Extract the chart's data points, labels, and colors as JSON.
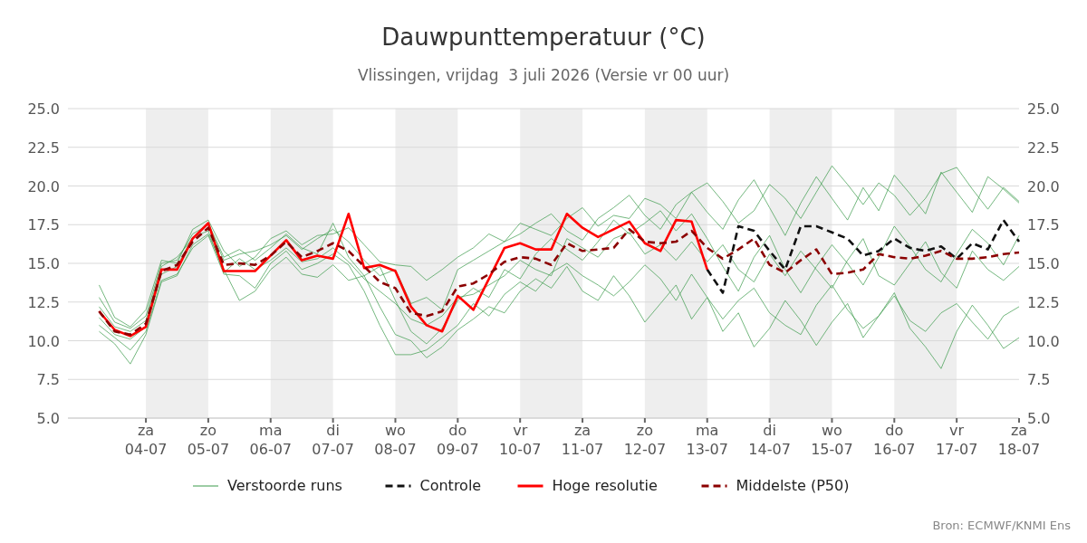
{
  "chart_data": {
    "type": "line",
    "title": "Dauwpunttemperatuur (°C)",
    "subtitle": "Vlissingen, vrijdag  3 juli 2026 (Versie vr 00 uur)",
    "annotations": [
      "Bron: ECMWF/KNMI Ens"
    ],
    "x": [
      "2026-07-03T06:00",
      "2026-07-03T12:00",
      "2026-07-03T18:00",
      "2026-07-04T00:00",
      "2026-07-04T06:00",
      "2026-07-04T12:00",
      "2026-07-04T18:00",
      "2026-07-05T00:00",
      "2026-07-05T06:00",
      "2026-07-05T12:00",
      "2026-07-05T18:00",
      "2026-07-06T00:00",
      "2026-07-06T06:00",
      "2026-07-06T12:00",
      "2026-07-06T18:00",
      "2026-07-07T00:00",
      "2026-07-07T06:00",
      "2026-07-07T12:00",
      "2026-07-07T18:00",
      "2026-07-08T00:00",
      "2026-07-08T06:00",
      "2026-07-08T12:00",
      "2026-07-08T18:00",
      "2026-07-09T00:00",
      "2026-07-09T06:00",
      "2026-07-09T12:00",
      "2026-07-09T18:00",
      "2026-07-10T00:00",
      "2026-07-10T06:00",
      "2026-07-10T12:00",
      "2026-07-10T18:00",
      "2026-07-11T00:00",
      "2026-07-11T06:00",
      "2026-07-11T12:00",
      "2026-07-11T18:00",
      "2026-07-12T00:00",
      "2026-07-12T06:00",
      "2026-07-12T12:00",
      "2026-07-12T18:00",
      "2026-07-13T00:00",
      "2026-07-13T06:00",
      "2026-07-13T12:00",
      "2026-07-13T18:00",
      "2026-07-14T00:00",
      "2026-07-14T06:00",
      "2026-07-14T12:00",
      "2026-07-14T18:00",
      "2026-07-15T00:00",
      "2026-07-15T06:00",
      "2026-07-15T12:00",
      "2026-07-15T18:00",
      "2026-07-16T00:00",
      "2026-07-16T06:00",
      "2026-07-16T12:00",
      "2026-07-16T18:00",
      "2026-07-17T00:00",
      "2026-07-17T06:00",
      "2026-07-17T12:00",
      "2026-07-17T18:00",
      "2026-07-18T00:00"
    ],
    "series": [
      {
        "name": "Verstoorde runs",
        "color": "#3a9a4a",
        "line_style": "solid",
        "values": [
          12.8,
          11.2,
          10.8,
          11.6,
          15.0,
          15.2,
          16.9,
          17.5,
          15.2,
          15.6,
          15.8,
          16.2,
          16.8,
          15.9,
          16.6,
          17.2,
          16.4,
          15.2,
          14.2,
          14.6,
          12.4,
          12.8,
          12.0,
          14.6,
          15.2,
          15.8,
          16.4,
          16.9,
          17.6,
          18.2,
          17.1,
          16.5,
          17.9,
          18.6,
          19.4,
          18.1,
          17.2,
          18.8,
          19.6,
          18.3,
          17.2,
          19.1,
          20.4,
          18.6,
          16.8,
          18.9,
          20.6,
          19.2,
          17.8,
          19.9,
          18.4,
          20.7,
          19.5,
          18.2,
          20.9,
          19.6,
          18.3,
          20.6,
          19.8,
          18.9
        ]
      },
      {
        "color": "#3a9a4a",
        "line_style": "solid",
        "values": [
          11.0,
          10.2,
          9.4,
          10.6,
          13.9,
          14.3,
          16.0,
          16.8,
          14.3,
          14.2,
          13.4,
          15.0,
          15.8,
          14.6,
          15.0,
          15.6,
          14.9,
          13.2,
          11.0,
          9.1,
          9.1,
          9.4,
          10.2,
          11.0,
          12.4,
          11.6,
          13.0,
          13.8,
          13.2,
          14.4,
          15.0,
          14.2,
          13.6,
          12.9,
          13.8,
          14.9,
          14.0,
          12.6,
          14.3,
          12.8,
          11.4,
          12.6,
          13.4,
          11.8,
          11.0,
          10.4,
          12.3,
          13.6,
          12.0,
          10.8,
          11.6,
          12.9,
          11.3,
          10.6,
          11.8,
          12.4,
          11.2,
          10.1,
          11.6,
          12.2
        ]
      },
      {
        "color": "#3a9a4a",
        "line_style": "solid",
        "values": [
          12.2,
          10.9,
          10.6,
          11.3,
          14.8,
          15.4,
          16.6,
          17.6,
          15.4,
          15.9,
          15.2,
          16.0,
          16.9,
          16.0,
          15.6,
          17.6,
          15.4,
          14.2,
          14.8,
          12.6,
          10.6,
          9.8,
          10.8,
          12.6,
          13.4,
          12.8,
          14.6,
          14.0,
          15.6,
          16.6,
          15.9,
          15.2,
          16.4,
          17.8,
          16.9,
          17.6,
          18.4,
          17.1,
          18.2,
          16.6,
          14.8,
          13.2,
          15.4,
          16.8,
          14.6,
          13.1,
          14.8,
          16.2,
          15.0,
          13.6,
          15.4,
          17.4,
          16.1,
          14.6,
          13.8,
          15.6,
          17.2,
          16.3,
          14.9,
          16.8
        ]
      },
      {
        "color": "#3a9a4a",
        "line_style": "solid",
        "values": [
          13.6,
          11.5,
          10.9,
          12.0,
          15.2,
          15.0,
          17.2,
          17.8,
          15.8,
          14.8,
          15.4,
          16.6,
          17.1,
          16.2,
          16.8,
          16.9,
          17.3,
          16.2,
          15.1,
          14.9,
          14.8,
          13.9,
          14.6,
          15.4,
          16.0,
          16.9,
          16.4,
          17.6,
          17.2,
          16.8,
          17.9,
          18.6,
          17.4,
          18.1,
          17.9,
          19.2,
          18.8,
          17.9,
          19.6,
          20.2,
          19.0,
          17.6,
          18.4,
          20.1,
          19.2,
          17.9,
          19.6,
          21.3,
          20.1,
          18.8,
          20.2,
          19.4,
          18.1,
          19.2,
          20.8,
          21.2,
          19.8,
          18.5,
          19.9,
          19.0
        ]
      },
      {
        "color": "#3a9a4a",
        "line_style": "solid",
        "values": [
          10.6,
          9.8,
          8.5,
          10.4,
          13.8,
          14.2,
          16.2,
          16.9,
          14.6,
          12.6,
          13.2,
          14.6,
          15.4,
          14.3,
          14.1,
          14.9,
          13.9,
          14.2,
          12.2,
          10.4,
          10.0,
          8.9,
          9.6,
          10.7,
          11.4,
          12.2,
          11.8,
          13.2,
          14.0,
          13.4,
          14.8,
          13.2,
          12.6,
          14.2,
          12.9,
          11.2,
          12.4,
          13.6,
          11.4,
          12.8,
          10.6,
          11.8,
          9.6,
          10.8,
          12.6,
          11.3,
          9.7,
          11.2,
          12.4,
          10.2,
          11.6,
          13.1,
          10.8,
          9.6,
          8.2,
          10.6,
          12.3,
          11.0,
          9.5,
          10.2
        ]
      },
      {
        "color": "#3a9a4a",
        "line_style": "solid",
        "values": [
          11.5,
          10.4,
          10.1,
          10.9,
          14.3,
          14.8,
          16.7,
          17.1,
          14.4,
          15.3,
          14.6,
          15.2,
          16.0,
          15.1,
          15.3,
          16.0,
          15.1,
          14.0,
          13.2,
          12.4,
          11.4,
          11.0,
          11.6,
          12.8,
          13.0,
          13.6,
          14.2,
          15.2,
          14.6,
          14.2,
          16.6,
          16.0,
          15.4,
          16.6,
          17.0,
          15.6,
          16.2,
          15.2,
          16.4,
          15.1,
          16.2,
          14.6,
          13.8,
          15.6,
          14.2,
          15.8,
          14.6,
          13.4,
          15.2,
          16.6,
          14.2,
          13.6,
          15.0,
          16.4,
          14.4,
          13.4,
          15.8,
          14.6,
          13.9,
          14.8
        ]
      },
      {
        "name": "Controle",
        "color": "#111111",
        "line_style": "dashed",
        "values": [
          null,
          null,
          null,
          null,
          null,
          null,
          null,
          null,
          null,
          null,
          null,
          null,
          null,
          null,
          null,
          null,
          null,
          null,
          null,
          null,
          null,
          null,
          null,
          null,
          null,
          null,
          null,
          null,
          null,
          null,
          null,
          null,
          null,
          null,
          null,
          null,
          null,
          null,
          null,
          14.6,
          13.1,
          17.4,
          17.1,
          15.8,
          14.6,
          17.4,
          17.4,
          17.0,
          16.6,
          15.5,
          15.8,
          16.6,
          16.0,
          15.8,
          16.1,
          15.3,
          16.3,
          15.9,
          17.8,
          16.4
        ]
      },
      {
        "name": "Hoge resolutie",
        "color": "#ff0000",
        "line_style": "solid",
        "values": [
          11.9,
          10.7,
          10.3,
          10.9,
          14.6,
          14.6,
          16.6,
          17.6,
          14.5,
          14.5,
          14.5,
          15.5,
          16.5,
          15.2,
          15.5,
          15.3,
          18.2,
          14.7,
          14.9,
          14.5,
          12.2,
          11.0,
          10.6,
          12.9,
          12.0,
          14.0,
          16.0,
          16.3,
          15.9,
          15.9,
          18.2,
          17.3,
          16.7,
          17.2,
          17.7,
          16.3,
          15.8,
          17.8,
          17.7,
          14.6,
          null,
          null,
          null,
          null,
          null,
          null,
          null,
          null,
          null,
          null,
          null,
          null,
          null,
          null,
          null,
          null,
          null,
          null,
          null,
          null
        ]
      },
      {
        "name": "Middelste (P50)",
        "color": "#8b0000",
        "line_style": "dashed",
        "values": [
          11.9,
          10.6,
          10.4,
          11.1,
          14.5,
          14.9,
          16.4,
          17.3,
          14.9,
          15.0,
          14.9,
          15.5,
          16.4,
          15.4,
          15.8,
          16.3,
          15.8,
          14.8,
          13.8,
          13.4,
          11.8,
          11.6,
          11.9,
          13.5,
          13.7,
          14.3,
          15.1,
          15.4,
          15.3,
          14.9,
          16.3,
          15.8,
          15.9,
          16.0,
          17.2,
          16.4,
          16.3,
          16.4,
          17.1,
          16.0,
          15.3,
          15.9,
          16.6,
          14.9,
          14.4,
          15.2,
          15.9,
          14.3,
          14.4,
          14.6,
          15.6,
          15.4,
          15.3,
          15.5,
          15.8,
          15.3,
          15.3,
          15.4,
          15.6,
          15.7
        ]
      }
    ],
    "xlim": [
      "2026-07-02T18:00",
      "2026-07-18T00:00"
    ],
    "xticks": [
      {
        "value": "2026-07-04",
        "label": "za\n04-07"
      },
      {
        "value": "2026-07-05",
        "label": "zo\n05-07"
      },
      {
        "value": "2026-07-06",
        "label": "ma\n06-07"
      },
      {
        "value": "2026-07-07",
        "label": "di\n07-07"
      },
      {
        "value": "2026-07-08",
        "label": "wo\n08-07"
      },
      {
        "value": "2026-07-09",
        "label": "do\n09-07"
      },
      {
        "value": "2026-07-10",
        "label": "vr\n10-07"
      },
      {
        "value": "2026-07-11",
        "label": "za\n11-07"
      },
      {
        "value": "2026-07-12",
        "label": "zo\n12-07"
      },
      {
        "value": "2026-07-13",
        "label": "ma\n13-07"
      },
      {
        "value": "2026-07-14",
        "label": "di\n14-07"
      },
      {
        "value": "2026-07-15",
        "label": "wo\n15-07"
      },
      {
        "value": "2026-07-16",
        "label": "do\n16-07"
      },
      {
        "value": "2026-07-17",
        "label": "vr\n17-07"
      },
      {
        "value": "2026-07-18",
        "label": "za\n18-07"
      }
    ],
    "ylim": [
      5,
      25
    ],
    "yticks": [
      {
        "value": 5,
        "label": "5.0"
      },
      {
        "value": 7.5,
        "label": "7.5"
      },
      {
        "value": 10,
        "label": "10.0"
      },
      {
        "value": 12.5,
        "label": "12.5"
      },
      {
        "value": 15,
        "label": "15.0"
      },
      {
        "value": 17.5,
        "label": "17.5"
      },
      {
        "value": 20,
        "label": "20.0"
      },
      {
        "value": 22.5,
        "label": "22.5"
      },
      {
        "value": 25,
        "label": "25.0"
      }
    ],
    "y2lim": [
      5,
      25
    ],
    "y2ticks": [
      {
        "value": 5,
        "label": "5.0"
      },
      {
        "value": 7.5,
        "label": "7.5"
      },
      {
        "value": 10,
        "label": "10.0"
      },
      {
        "value": 12.5,
        "label": "12.5"
      },
      {
        "value": 15,
        "label": "15.0"
      },
      {
        "value": 17.5,
        "label": "17.5"
      },
      {
        "value": 20,
        "label": "20.0"
      },
      {
        "value": 22.5,
        "label": "22.5"
      },
      {
        "value": 25,
        "label": "25.0"
      }
    ],
    "bands": [
      {
        "axis": "x",
        "from": "2026-07-04",
        "to": "2026-07-05",
        "color": "#eeeeee"
      },
      {
        "axis": "x",
        "from": "2026-07-06",
        "to": "2026-07-07",
        "color": "#eeeeee"
      },
      {
        "axis": "x",
        "from": "2026-07-08",
        "to": "2026-07-09",
        "color": "#eeeeee"
      },
      {
        "axis": "x",
        "from": "2026-07-10",
        "to": "2026-07-11",
        "color": "#eeeeee"
      },
      {
        "axis": "x",
        "from": "2026-07-12",
        "to": "2026-07-13",
        "color": "#eeeeee"
      },
      {
        "axis": "x",
        "from": "2026-07-14",
        "to": "2026-07-15",
        "color": "#eeeeee"
      },
      {
        "axis": "x",
        "from": "2026-07-16",
        "to": "2026-07-17",
        "color": "#eeeeee"
      }
    ],
    "grid": "y",
    "legend": "bottom"
  }
}
